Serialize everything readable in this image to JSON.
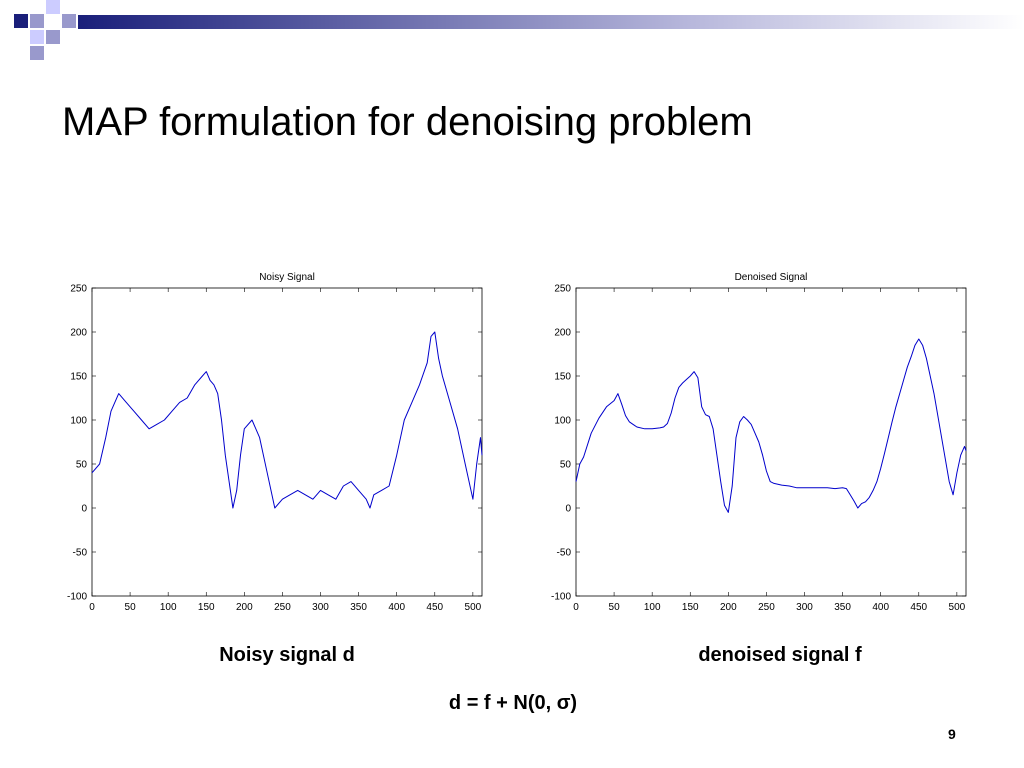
{
  "slide": {
    "title": "MAP formulation for denoising problem",
    "caption_noisy": "Noisy signal d",
    "caption_denoised": "denoised signal f",
    "equation": "d = f + N(0, σ)",
    "page_number": "9",
    "decor_colors": [
      "#1a1f7a",
      "#9999cc",
      "#ccccff"
    ]
  },
  "chart_data": [
    {
      "type": "line",
      "title": "Noisy Signal",
      "xlabel": "",
      "ylabel": "",
      "xlim": [
        0,
        512
      ],
      "ylim": [
        -100,
        250
      ],
      "xticks": [
        0,
        50,
        100,
        150,
        200,
        250,
        300,
        350,
        400,
        450,
        500
      ],
      "yticks": [
        -100,
        -50,
        0,
        50,
        100,
        150,
        200,
        250
      ],
      "grid": false,
      "series": [
        {
          "color": "#0000cc",
          "x": [
            0,
            10,
            18,
            25,
            35,
            45,
            55,
            65,
            75,
            85,
            95,
            105,
            115,
            125,
            135,
            145,
            150,
            155,
            160,
            165,
            170,
            175,
            180,
            185,
            190,
            195,
            200,
            210,
            220,
            230,
            240,
            250,
            260,
            270,
            280,
            290,
            300,
            310,
            320,
            330,
            340,
            350,
            360,
            365,
            370,
            380,
            390,
            400,
            410,
            420,
            430,
            440,
            445,
            450,
            455,
            460,
            470,
            480,
            490,
            500,
            505,
            510,
            512
          ],
          "y": [
            40,
            50,
            80,
            110,
            130,
            120,
            110,
            100,
            90,
            95,
            100,
            110,
            120,
            125,
            140,
            150,
            155,
            145,
            140,
            130,
            100,
            60,
            30,
            0,
            20,
            60,
            90,
            100,
            80,
            40,
            0,
            10,
            15,
            20,
            15,
            10,
            20,
            15,
            10,
            25,
            30,
            20,
            10,
            0,
            15,
            20,
            25,
            60,
            100,
            120,
            140,
            165,
            195,
            200,
            170,
            150,
            120,
            90,
            50,
            10,
            50,
            80,
            60
          ]
        }
      ]
    },
    {
      "type": "line",
      "title": "Denoised Signal",
      "xlabel": "",
      "ylabel": "",
      "xlim": [
        0,
        512
      ],
      "ylim": [
        -100,
        250
      ],
      "xticks": [
        0,
        50,
        100,
        150,
        200,
        250,
        300,
        350,
        400,
        450,
        500
      ],
      "yticks": [
        -100,
        -50,
        0,
        50,
        100,
        150,
        200,
        250
      ],
      "grid": false,
      "series": [
        {
          "color": "#0000cc",
          "x": [
            0,
            5,
            10,
            20,
            30,
            40,
            50,
            55,
            60,
            65,
            70,
            75,
            80,
            90,
            100,
            110,
            115,
            120,
            125,
            130,
            135,
            140,
            145,
            150,
            155,
            160,
            165,
            170,
            175,
            180,
            185,
            190,
            195,
            200,
            205,
            210,
            215,
            220,
            225,
            230,
            235,
            240,
            245,
            250,
            255,
            260,
            270,
            280,
            290,
            300,
            310,
            320,
            330,
            340,
            350,
            355,
            360,
            365,
            370,
            375,
            380,
            385,
            390,
            395,
            400,
            405,
            410,
            415,
            420,
            425,
            430,
            435,
            440,
            445,
            450,
            455,
            460,
            465,
            470,
            475,
            480,
            485,
            490,
            495,
            500,
            505,
            510,
            512
          ],
          "y": [
            30,
            50,
            58,
            85,
            102,
            115,
            122,
            130,
            118,
            105,
            98,
            95,
            92,
            90,
            90,
            91,
            92,
            96,
            108,
            125,
            137,
            142,
            146,
            150,
            155,
            148,
            115,
            106,
            104,
            90,
            60,
            30,
            3,
            -5,
            25,
            80,
            98,
            104,
            100,
            95,
            85,
            75,
            60,
            42,
            30,
            28,
            26,
            25,
            23,
            23,
            23,
            23,
            23,
            22,
            23,
            22,
            15,
            8,
            0,
            5,
            7,
            12,
            20,
            30,
            45,
            62,
            80,
            98,
            115,
            130,
            145,
            160,
            172,
            185,
            192,
            185,
            170,
            150,
            130,
            105,
            80,
            55,
            30,
            15,
            40,
            60,
            70,
            65
          ]
        }
      ]
    }
  ]
}
